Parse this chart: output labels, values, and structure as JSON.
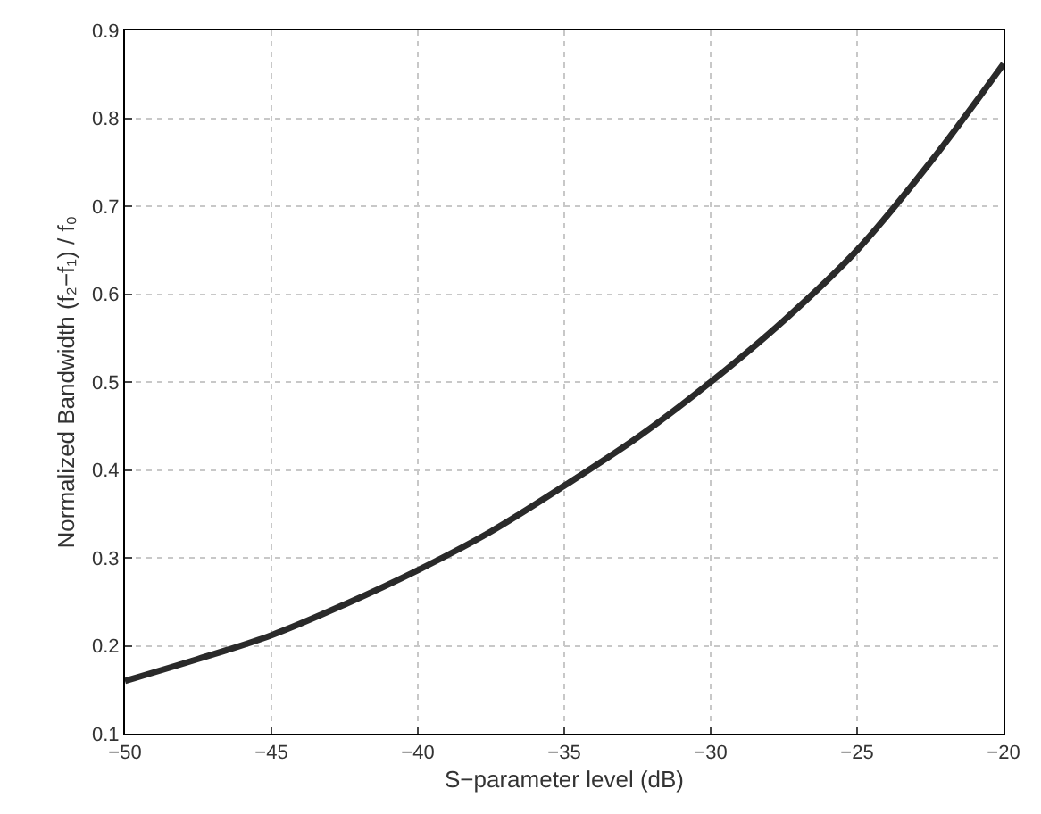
{
  "chart_data": {
    "type": "line",
    "xlabel": "S−parameter level (dB)",
    "ylabel": "Normalized Bandwidth (f₂−f₁) / f₀",
    "x": [
      -50,
      -47.5,
      -45,
      -42.5,
      -40,
      -37.5,
      -35,
      -32.5,
      -30,
      -27.5,
      -25,
      -22.5,
      -20
    ],
    "series": [
      {
        "color": "#2a2a2a",
        "values": [
          0.16,
          0.185,
          0.212,
          0.247,
          0.286,
          0.33,
          0.382,
          0.437,
          0.5,
          0.57,
          0.65,
          0.75,
          0.862
        ]
      }
    ],
    "xlim": [
      -50,
      -20
    ],
    "xticks": [
      {
        "value": -50,
        "label": "−50"
      },
      {
        "value": -45,
        "label": "−45"
      },
      {
        "value": -40,
        "label": "−40"
      },
      {
        "value": -35,
        "label": "−35"
      },
      {
        "value": -30,
        "label": "−30"
      },
      {
        "value": -25,
        "label": "−25"
      },
      {
        "value": -20,
        "label": "−20"
      }
    ],
    "ylim": [
      0.1,
      0.9
    ],
    "yticks": [
      0.1,
      0.2,
      0.3,
      0.4,
      0.5,
      0.6,
      0.7,
      0.8,
      0.9
    ],
    "grid": true,
    "legend": false,
    "marker": "none",
    "line_style": "solid"
  }
}
